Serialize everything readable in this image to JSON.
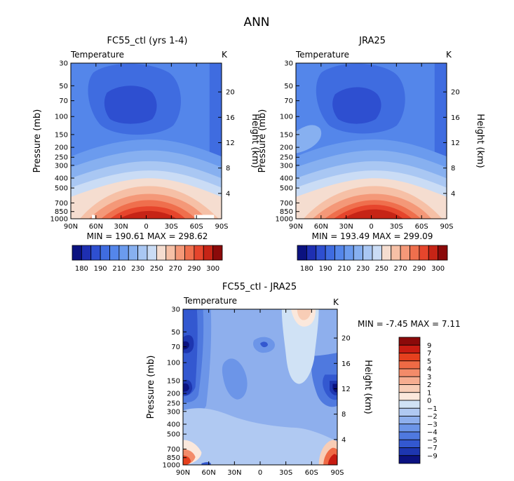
{
  "page_title": "ANN",
  "chart_data": [
    {
      "type": "heatmap",
      "title": "FC55_ctl (yrs 1-4)",
      "variable_label": "Temperature",
      "unit_label": "K",
      "ylabel": "Pressure (mb)",
      "ylabel_right": "Height (km)",
      "x_ticks": [
        "90N",
        "60N",
        "30N",
        "0",
        "30S",
        "60S",
        "90S"
      ],
      "y_ticks": [
        "30",
        "50",
        "70",
        "100",
        "150",
        "200",
        "250",
        "300",
        "400",
        "500",
        "700",
        "850",
        "1000"
      ],
      "height_ticks": [
        "20",
        "16",
        "12",
        "8",
        "4"
      ],
      "stats_text": "MIN = 190.61   MAX = 298.62",
      "stats": {
        "min": 190.61,
        "max": 298.62
      },
      "colorbar_ticks": [
        "180",
        "190",
        "210",
        "230",
        "250",
        "270",
        "290",
        "300"
      ],
      "levels": [
        180,
        185,
        190,
        200,
        210,
        220,
        230,
        240,
        250,
        260,
        270,
        280,
        290,
        295,
        300
      ]
    },
    {
      "type": "heatmap",
      "title": "JRA25",
      "variable_label": "Temperature",
      "unit_label": "K",
      "ylabel": "Pressure (mb)",
      "ylabel_right": "Height (km)",
      "x_ticks": [
        "90N",
        "60N",
        "30N",
        "0",
        "30S",
        "60S",
        "90S"
      ],
      "y_ticks": [
        "30",
        "50",
        "70",
        "100",
        "150",
        "200",
        "250",
        "300",
        "400",
        "500",
        "700",
        "850",
        "1000"
      ],
      "height_ticks": [
        "20",
        "16",
        "12",
        "8",
        "4"
      ],
      "stats_text": "MIN = 193.49   MAX = 299.09",
      "stats": {
        "min": 193.49,
        "max": 299.09
      },
      "colorbar_ticks": [
        "180",
        "190",
        "210",
        "230",
        "250",
        "270",
        "290",
        "300"
      ],
      "levels": [
        180,
        185,
        190,
        200,
        210,
        220,
        230,
        240,
        250,
        260,
        270,
        280,
        290,
        295,
        300
      ]
    },
    {
      "type": "heatmap",
      "title": "FC55_ctl - JRA25",
      "variable_label": "Temperature",
      "unit_label": "K",
      "ylabel": "Pressure (mb)",
      "ylabel_right": "Height (km)",
      "x_ticks": [
        "90N",
        "60N",
        "30N",
        "0",
        "30S",
        "60S",
        "90S"
      ],
      "y_ticks": [
        "30",
        "50",
        "70",
        "100",
        "150",
        "200",
        "250",
        "300",
        "400",
        "500",
        "700",
        "850",
        "1000"
      ],
      "height_ticks": [
        "20",
        "16",
        "12",
        "8",
        "4"
      ],
      "stats_text": "MIN =   -7.45   MAX =     7.11",
      "stats": {
        "min": -7.45,
        "max": 7.11
      },
      "colorbar_ticks": [
        "9",
        "7",
        "5",
        "4",
        "3",
        "2",
        "1",
        "0",
        "-1",
        "-2",
        "-3",
        "-4",
        "-5",
        "-7",
        "-9"
      ],
      "levels": [
        -9,
        -7,
        -5,
        -4,
        -3,
        -2,
        -1,
        0,
        1,
        2,
        3,
        4,
        5,
        7,
        9
      ]
    }
  ],
  "colors": {
    "temperature_scale": [
      "#0b1280",
      "#1e2fb2",
      "#2e4fd0",
      "#3f6ce0",
      "#5486ea",
      "#6b9bee",
      "#87b0f0",
      "#a9c7f3",
      "#cadcf5",
      "#f5ddd0",
      "#f6c0a6",
      "#f49878",
      "#ef6f4d",
      "#e6452c",
      "#c62416",
      "#8b0a0a"
    ],
    "difference_scale": [
      "#8b0a0a",
      "#c81c12",
      "#e5401e",
      "#ef6a45",
      "#f38b69",
      "#f6ad90",
      "#f8cdb6",
      "#fbe8dc",
      "#d0e2f5",
      "#b0c9f2",
      "#8eafed",
      "#6c95e8",
      "#4f79df",
      "#3358d0",
      "#1d36b0",
      "#0b1280"
    ]
  }
}
